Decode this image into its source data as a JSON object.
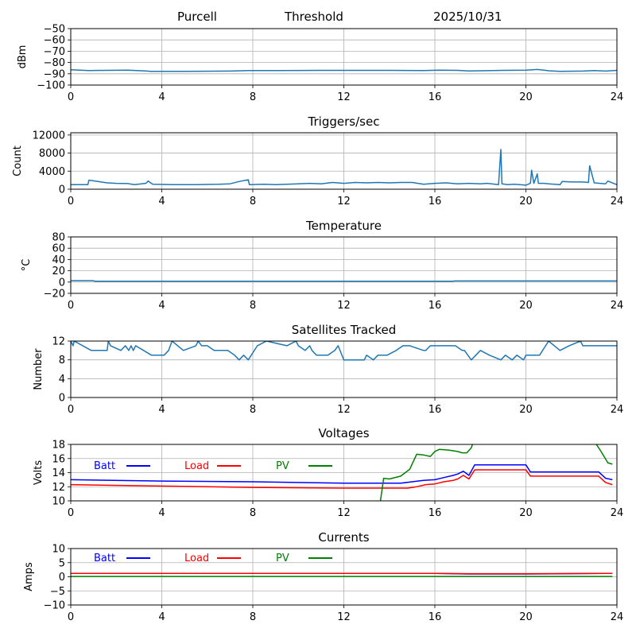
{
  "header": {
    "station": "Purcell",
    "mode": "Threshold",
    "date": "2025/10/31"
  },
  "chart_data": [
    {
      "id": "threshold",
      "type": "line",
      "title": "",
      "xlabel": "",
      "ylabel": "dBm",
      "xlim": [
        0,
        24
      ],
      "ylim": [
        -100,
        -50
      ],
      "xticks": [
        0,
        4,
        8,
        12,
        16,
        20,
        24
      ],
      "yticks": [
        -50,
        -60,
        -70,
        -80,
        -90,
        -100
      ],
      "ytick_labels": [
        "−50",
        "−60",
        "−70",
        "−80",
        "−90",
        "−100"
      ],
      "grid": true,
      "legend": null,
      "series": [
        {
          "name": "threshold",
          "color": "#1f77b4",
          "x": [
            0,
            0.8,
            1.5,
            2.5,
            3.3,
            3.5,
            5,
            7,
            7.8,
            9,
            11,
            12,
            14,
            15.5,
            16.2,
            17,
            17.5,
            18,
            19,
            20,
            20.5,
            20.8,
            21,
            21.5,
            22.5,
            23,
            23.5,
            24
          ],
          "y": [
            -86.5,
            -87.2,
            -87,
            -86.8,
            -87.5,
            -87.8,
            -87.8,
            -87.6,
            -87.2,
            -87.2,
            -87,
            -87,
            -87,
            -87.2,
            -86.8,
            -87,
            -87.5,
            -87.3,
            -87,
            -86.8,
            -86.2,
            -86.8,
            -87.3,
            -87.8,
            -87.6,
            -87.2,
            -87.6,
            -87
          ]
        }
      ]
    },
    {
      "id": "triggers",
      "type": "line",
      "title": "Triggers/sec",
      "xlabel": "",
      "ylabel": "Count",
      "xlim": [
        0,
        24
      ],
      "ylim": [
        0,
        12500
      ],
      "xticks": [
        0,
        4,
        8,
        12,
        16,
        20,
        24
      ],
      "yticks": [
        0,
        4000,
        8000,
        12000
      ],
      "ytick_labels": [
        "0",
        "4000",
        "8000",
        "12000"
      ],
      "grid": true,
      "legend": null,
      "series": [
        {
          "name": "triggers",
          "color": "#1f77b4",
          "x": [
            0,
            0.75,
            0.8,
            1.2,
            1.6,
            2.0,
            2.5,
            2.8,
            3.3,
            3.4,
            3.6,
            4.5,
            5.5,
            6.5,
            7.0,
            7.4,
            7.8,
            7.85,
            8.5,
            9,
            10,
            10.5,
            11,
            11.5,
            12,
            12.5,
            13,
            13.5,
            14,
            14.5,
            15,
            15.5,
            16,
            16.5,
            17,
            17.5,
            18,
            18.3,
            18.8,
            18.9,
            18.95,
            19.2,
            19.5,
            20,
            20.2,
            20.25,
            20.35,
            20.5,
            20.55,
            20.8,
            21,
            21.5,
            21.6,
            22,
            22.5,
            22.75,
            22.8,
            23,
            23.5,
            23.6,
            24
          ],
          "y": [
            1000,
            1000,
            2000,
            1700,
            1400,
            1300,
            1250,
            1000,
            1300,
            1800,
            1100,
            1000,
            1000,
            1100,
            1200,
            1700,
            2100,
            1000,
            1100,
            1000,
            1200,
            1300,
            1200,
            1500,
            1300,
            1500,
            1400,
            1500,
            1400,
            1500,
            1500,
            1100,
            1300,
            1400,
            1200,
            1300,
            1200,
            1300,
            1000,
            8800,
            1200,
            1000,
            1100,
            900,
            1300,
            4200,
            1300,
            3400,
            1300,
            1300,
            1200,
            1000,
            1700,
            1600,
            1600,
            1500,
            5200,
            1400,
            1200,
            1800,
            1000
          ]
        }
      ]
    },
    {
      "id": "temperature",
      "type": "line",
      "title": "Temperature",
      "xlabel": "",
      "ylabel": "°C",
      "xlim": [
        0,
        24
      ],
      "ylim": [
        -20,
        80
      ],
      "xticks": [
        0,
        4,
        8,
        12,
        16,
        20,
        24
      ],
      "yticks": [
        -20,
        0,
        20,
        40,
        60,
        80
      ],
      "ytick_labels": [
        "−20",
        "0",
        "20",
        "40",
        "60",
        "80"
      ],
      "grid": true,
      "legend": null,
      "series": [
        {
          "name": "temperature",
          "color": "#1f77b4",
          "x": [
            0,
            1.0,
            1.05,
            16.8,
            16.85,
            24
          ],
          "y": [
            2.5,
            2.5,
            1.5,
            1.5,
            2,
            2
          ]
        }
      ]
    },
    {
      "id": "satellites",
      "type": "line",
      "title": "Satellites Tracked",
      "xlabel": "",
      "ylabel": "Number",
      "xlim": [
        0,
        24
      ],
      "ylim": [
        0,
        12
      ],
      "xticks": [
        0,
        4,
        8,
        12,
        16,
        20,
        24
      ],
      "yticks": [
        0,
        4,
        8,
        12
      ],
      "ytick_labels": [
        "0",
        "4",
        "8",
        "12"
      ],
      "grid": true,
      "legend": null,
      "series": [
        {
          "name": "satellites",
          "color": "#1f77b4",
          "x": [
            0,
            0.1,
            0.15,
            0.9,
            1.6,
            1.65,
            1.75,
            2.2,
            2.4,
            2.55,
            2.65,
            2.75,
            2.85,
            3.2,
            3.55,
            4.1,
            4.3,
            4.45,
            4.95,
            5.5,
            5.6,
            5.75,
            6.0,
            6.3,
            6.6,
            6.9,
            7.2,
            7.4,
            7.6,
            7.8,
            8.2,
            8.6,
            9.5,
            9.9,
            10.0,
            10.3,
            10.5,
            10.6,
            10.8,
            11.3,
            11.6,
            11.75,
            12.0,
            12.9,
            13.0,
            13.3,
            13.5,
            13.9,
            14.3,
            14.6,
            14.9,
            15.5,
            15.6,
            15.8,
            16.5,
            16.9,
            17.2,
            17.3,
            17.6,
            18.0,
            18.4,
            18.9,
            19.1,
            19.4,
            19.6,
            19.9,
            20.0,
            20.6,
            21.0,
            21.5,
            21.9,
            22.4,
            22.5,
            24
          ],
          "y": [
            12,
            11,
            12,
            10,
            10,
            12,
            11,
            10,
            11,
            10,
            11,
            10,
            11,
            10,
            9,
            9,
            10,
            12,
            10,
            11,
            12,
            11,
            11,
            10,
            10,
            10,
            9,
            8,
            9,
            8,
            11,
            12,
            11,
            12,
            11,
            10,
            11,
            10,
            9,
            9,
            10,
            11,
            8,
            8,
            9,
            8,
            9,
            9,
            10,
            11,
            11,
            10,
            10,
            11,
            11,
            11,
            10,
            10,
            8,
            10,
            9,
            8,
            9,
            8,
            9,
            8,
            9,
            9,
            12,
            10,
            11,
            12,
            11,
            11
          ]
        }
      ]
    },
    {
      "id": "voltages",
      "type": "line",
      "title": "Voltages",
      "xlabel": "",
      "ylabel": "Volts",
      "xlim": [
        0,
        24
      ],
      "ylim": [
        10,
        18
      ],
      "xticks": [
        0,
        4,
        8,
        12,
        16,
        20,
        24
      ],
      "yticks": [
        10,
        12,
        14,
        16,
        18
      ],
      "ytick_labels": [
        "10",
        "12",
        "14",
        "16",
        "18"
      ],
      "grid": true,
      "legend": "top-left",
      "series": [
        {
          "name": "Batt",
          "color": "#0000ff",
          "x": [
            0,
            4,
            8,
            12,
            14.5,
            15.0,
            15.5,
            16.0,
            16.4,
            16.8,
            17.0,
            17.25,
            17.5,
            17.75,
            20.0,
            20.2,
            23.2,
            23.5,
            23.8
          ],
          "y": [
            13.0,
            12.8,
            12.7,
            12.5,
            12.5,
            12.7,
            12.9,
            13.0,
            13.3,
            13.6,
            13.8,
            14.2,
            13.6,
            15.1,
            15.1,
            14.1,
            14.1,
            13.2,
            13.0
          ]
        },
        {
          "name": "Load",
          "color": "#ff0000",
          "x": [
            0,
            4,
            8,
            12,
            14.8,
            15.2,
            15.6,
            16.0,
            16.4,
            16.8,
            17.0,
            17.25,
            17.5,
            17.75,
            20.0,
            20.2,
            23.2,
            23.5,
            23.8
          ],
          "y": [
            12.3,
            12.1,
            11.9,
            11.8,
            11.8,
            12.0,
            12.3,
            12.4,
            12.7,
            12.9,
            13.1,
            13.6,
            13.1,
            14.4,
            14.4,
            13.5,
            13.5,
            12.6,
            12.3
          ]
        },
        {
          "name": "PV",
          "color": "#008000",
          "x": [
            13.6,
            13.75,
            14.0,
            14.5,
            14.9,
            15.2,
            15.5,
            15.8,
            16.0,
            16.2,
            16.6,
            17.0,
            17.2,
            17.4,
            17.6,
            17.7,
            23.0,
            23.3,
            23.6,
            23.8
          ],
          "y": [
            9.8,
            13.2,
            13.1,
            13.5,
            14.5,
            16.6,
            16.5,
            16.3,
            17.0,
            17.3,
            17.2,
            17.0,
            16.8,
            16.8,
            17.5,
            18.5,
            18.5,
            17.0,
            15.4,
            15.2
          ]
        }
      ]
    },
    {
      "id": "currents",
      "type": "line",
      "title": "Currents",
      "xlabel": "",
      "ylabel": "Amps",
      "xlim": [
        0,
        24
      ],
      "ylim": [
        -10,
        10
      ],
      "xticks": [
        0,
        4,
        8,
        12,
        16,
        20,
        24
      ],
      "yticks": [
        -10,
        -5,
        0,
        5,
        10
      ],
      "ytick_labels": [
        "−10",
        "−5",
        "0",
        "5",
        "10"
      ],
      "grid": true,
      "legend": "top-left",
      "series": [
        {
          "name": "Batt",
          "color": "#0000ff",
          "x": [
            0,
            16,
            17.5,
            20,
            23.8
          ],
          "y": [
            1.2,
            1.2,
            1.0,
            1.0,
            1.2
          ]
        },
        {
          "name": "Load",
          "color": "#ff0000",
          "x": [
            0,
            16,
            17.5,
            20,
            23.8
          ],
          "y": [
            1.2,
            1.2,
            1.1,
            1.1,
            1.2
          ]
        },
        {
          "name": "PV",
          "color": "#008000",
          "x": [
            0,
            23.8
          ],
          "y": [
            0.1,
            0.1
          ]
        }
      ]
    }
  ]
}
